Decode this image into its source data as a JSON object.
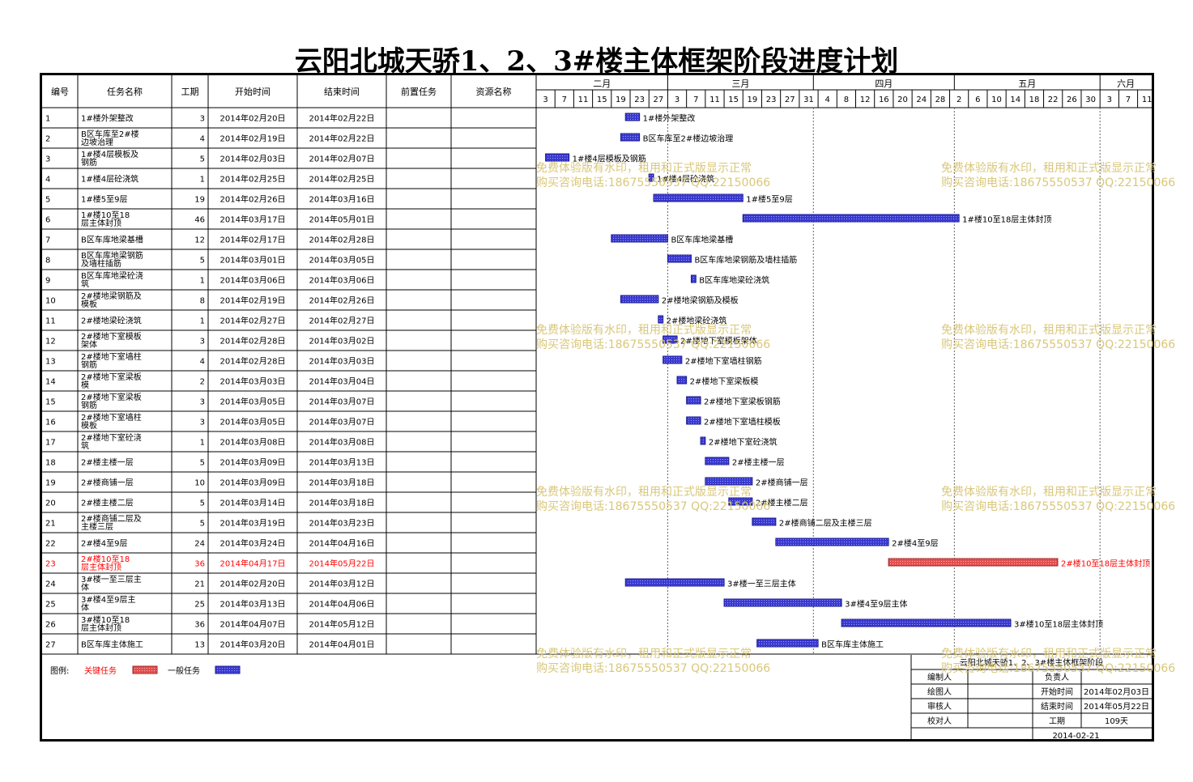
{
  "title": "云阳北城天骄1、2、3#楼主体框架阶段进度计划",
  "columns": [
    "编号",
    "任务名称",
    "工期",
    "开始时间",
    "结束时间",
    "前置任务",
    "资源名称"
  ],
  "months": [
    {
      "label": "二月",
      "days": [
        "3",
        "7",
        "11",
        "15",
        "19",
        "23",
        "27"
      ]
    },
    {
      "label": "三月",
      "days": [
        "3",
        "7",
        "11",
        "15",
        "19",
        "23",
        "27",
        "31"
      ]
    },
    {
      "label": "四月",
      "days": [
        "4",
        "8",
        "12",
        "16",
        "20",
        "24",
        "28"
      ]
    },
    {
      "label": "五月",
      "days": [
        "2",
        "6",
        "10",
        "14",
        "18",
        "22",
        "26",
        "30"
      ]
    },
    {
      "label": "六月",
      "days": [
        "3",
        "7",
        "11"
      ]
    }
  ],
  "timeline": {
    "start": "2014-02-01",
    "end": "2014-06-12"
  },
  "legend": {
    "label": "图例:",
    "critical": "关键任务",
    "normal": "一般任务"
  },
  "colors": {
    "critical": "#e05050",
    "normal": "#3a3ad0",
    "critical_text": "#ff0000"
  },
  "chart_data": {
    "type": "gantt",
    "tasks": [
      {
        "id": "1",
        "name": "1#楼外架整改",
        "duration": "3",
        "start_label": "2014年02月20日",
        "end_label": "2014年02月22日",
        "start": "2014-02-20",
        "end": "2014-02-22",
        "critical": false,
        "bar_label": "1#楼外架整改"
      },
      {
        "id": "2",
        "name": "B区车库至2#楼边坡治理",
        "duration": "4",
        "start_label": "2014年02月19日",
        "end_label": "2014年02月22日",
        "start": "2014-02-19",
        "end": "2014-02-22",
        "critical": false,
        "bar_label": "B区车库至2#楼边坡治理"
      },
      {
        "id": "3",
        "name": "1#楼4层模板及钢筋",
        "duration": "5",
        "start_label": "2014年02月03日",
        "end_label": "2014年02月07日",
        "start": "2014-02-03",
        "end": "2014-02-07",
        "critical": false,
        "bar_label": "1#楼4层模板及钢筋"
      },
      {
        "id": "4",
        "name": "1#楼4层砼浇筑",
        "duration": "1",
        "start_label": "2014年02月25日",
        "end_label": "2014年02月25日",
        "start": "2014-02-25",
        "end": "2014-02-25",
        "critical": false,
        "bar_label": "1#楼4层砼浇筑"
      },
      {
        "id": "5",
        "name": "1#楼5至9层",
        "duration": "19",
        "start_label": "2014年02月26日",
        "end_label": "2014年03月16日",
        "start": "2014-02-26",
        "end": "2014-03-16",
        "critical": false,
        "bar_label": "1#楼5至9层"
      },
      {
        "id": "6",
        "name": "1#楼10至18层主体封顶",
        "duration": "46",
        "start_label": "2014年03月17日",
        "end_label": "2014年05月01日",
        "start": "2014-03-17",
        "end": "2014-05-01",
        "critical": false,
        "bar_label": "1#楼10至18层主体封顶"
      },
      {
        "id": "7",
        "name": "B区车库地梁基槽",
        "duration": "12",
        "start_label": "2014年02月17日",
        "end_label": "2014年02月28日",
        "start": "2014-02-17",
        "end": "2014-02-28",
        "critical": false,
        "bar_label": "B区车库地梁基槽"
      },
      {
        "id": "8",
        "name": "B区车库地梁钢筋及墙柱插筋",
        "duration": "5",
        "start_label": "2014年03月01日",
        "end_label": "2014年03月05日",
        "start": "2014-03-01",
        "end": "2014-03-05",
        "critical": false,
        "bar_label": "B区车库地梁钢筋及墙柱插筋"
      },
      {
        "id": "9",
        "name": "B区车库地梁砼浇筑",
        "duration": "1",
        "start_label": "2014年03月06日",
        "end_label": "2014年03月06日",
        "start": "2014-03-06",
        "end": "2014-03-06",
        "critical": false,
        "bar_label": "B区车库地梁砼浇筑"
      },
      {
        "id": "10",
        "name": "2#楼地梁钢筋及模板",
        "duration": "8",
        "start_label": "2014年02月19日",
        "end_label": "2014年02月26日",
        "start": "2014-02-19",
        "end": "2014-02-26",
        "critical": false,
        "bar_label": "2#楼地梁钢筋及模板"
      },
      {
        "id": "11",
        "name": "2#楼地梁砼浇筑",
        "duration": "1",
        "start_label": "2014年02月27日",
        "end_label": "2014年02月27日",
        "start": "2014-02-27",
        "end": "2014-02-27",
        "critical": false,
        "bar_label": "2#楼地梁砼浇筑"
      },
      {
        "id": "12",
        "name": "2#楼地下室模板架体",
        "duration": "3",
        "start_label": "2014年02月28日",
        "end_label": "2014年03月02日",
        "start": "2014-02-28",
        "end": "2014-03-02",
        "critical": false,
        "bar_label": "2#楼地下室模板架体"
      },
      {
        "id": "13",
        "name": "2#楼地下室墙柱钢筋",
        "duration": "4",
        "start_label": "2014年02月28日",
        "end_label": "2014年03月03日",
        "start": "2014-02-28",
        "end": "2014-03-03",
        "critical": false,
        "bar_label": "2#楼地下室墙柱钢筋"
      },
      {
        "id": "14",
        "name": "2#楼地下室梁板模",
        "duration": "2",
        "start_label": "2014年03月03日",
        "end_label": "2014年03月04日",
        "start": "2014-03-03",
        "end": "2014-03-04",
        "critical": false,
        "bar_label": "2#楼地下室梁板模"
      },
      {
        "id": "15",
        "name": "2#楼地下室梁板钢筋",
        "duration": "3",
        "start_label": "2014年03月05日",
        "end_label": "2014年03月07日",
        "start": "2014-03-05",
        "end": "2014-03-07",
        "critical": false,
        "bar_label": "2#楼地下室梁板钢筋"
      },
      {
        "id": "16",
        "name": "2#楼地下室墙柱模板",
        "duration": "3",
        "start_label": "2014年03月05日",
        "end_label": "2014年03月07日",
        "start": "2014-03-05",
        "end": "2014-03-07",
        "critical": false,
        "bar_label": "2#楼地下室墙柱模板"
      },
      {
        "id": "17",
        "name": "2#楼地下室砼浇筑",
        "duration": "1",
        "start_label": "2014年03月08日",
        "end_label": "2014年03月08日",
        "start": "2014-03-08",
        "end": "2014-03-08",
        "critical": false,
        "bar_label": "2#楼地下室砼浇筑"
      },
      {
        "id": "18",
        "name": "2#楼主楼一层",
        "duration": "5",
        "start_label": "2014年03月09日",
        "end_label": "2014年03月13日",
        "start": "2014-03-09",
        "end": "2014-03-13",
        "critical": false,
        "bar_label": "2#楼主楼一层"
      },
      {
        "id": "19",
        "name": "2#楼商铺一层",
        "duration": "10",
        "start_label": "2014年03月09日",
        "end_label": "2014年03月18日",
        "start": "2014-03-09",
        "end": "2014-03-18",
        "critical": false,
        "bar_label": "2#楼商铺一层"
      },
      {
        "id": "20",
        "name": "2#楼主楼二层",
        "duration": "5",
        "start_label": "2014年03月14日",
        "end_label": "2014年03月18日",
        "start": "2014-03-14",
        "end": "2014-03-18",
        "critical": false,
        "bar_label": "2#楼主楼二层"
      },
      {
        "id": "21",
        "name": "2#楼商铺二层及主楼三层",
        "duration": "5",
        "start_label": "2014年03月19日",
        "end_label": "2014年03月23日",
        "start": "2014-03-19",
        "end": "2014-03-23",
        "critical": false,
        "bar_label": "2#楼商铺二层及主楼三层"
      },
      {
        "id": "22",
        "name": "2#楼4至9层",
        "duration": "24",
        "start_label": "2014年03月24日",
        "end_label": "2014年04月16日",
        "start": "2014-03-24",
        "end": "2014-04-16",
        "critical": false,
        "bar_label": "2#楼4至9层"
      },
      {
        "id": "23",
        "name": "2#楼10至18层主体封顶",
        "duration": "36",
        "start_label": "2014年04月17日",
        "end_label": "2014年05月22日",
        "start": "2014-04-17",
        "end": "2014-05-22",
        "critical": true,
        "bar_label": "2#楼10至18层主体封顶"
      },
      {
        "id": "24",
        "name": "3#楼一至三层主体",
        "duration": "21",
        "start_label": "2014年02月20日",
        "end_label": "2014年03月12日",
        "start": "2014-02-20",
        "end": "2014-03-12",
        "critical": false,
        "bar_label": "3#楼一至三层主体"
      },
      {
        "id": "25",
        "name": "3#楼4至9层主体",
        "duration": "25",
        "start_label": "2014年03月13日",
        "end_label": "2014年04月06日",
        "start": "2014-03-13",
        "end": "2014-04-06",
        "critical": false,
        "bar_label": "3#楼4至9层主体"
      },
      {
        "id": "26",
        "name": "3#楼10至18层主体封顶",
        "duration": "36",
        "start_label": "2014年04月07日",
        "end_label": "2014年05月12日",
        "start": "2014-04-07",
        "end": "2014-05-12",
        "critical": false,
        "bar_label": "3#楼10至18层主体封顶"
      },
      {
        "id": "27",
        "name": "B区车库主体施工",
        "duration": "13",
        "start_label": "2014年03月20日",
        "end_label": "2014年04月01日",
        "start": "2014-03-20",
        "end": "2014-04-01",
        "critical": false,
        "bar_label": "B区车库主体施工"
      }
    ]
  },
  "info_box": {
    "title": "云阳北城天骄1、2、3#楼主体框架阶段",
    "rows": [
      {
        "left": "编制人",
        "mid": "负责人",
        "right": ""
      },
      {
        "left": "绘图人",
        "mid": "开始时间",
        "right": "2014年02月03日"
      },
      {
        "left": "审核人",
        "mid": "结束时间",
        "right": "2014年05月22日"
      },
      {
        "left": "校对人",
        "mid": "工期",
        "right": "109天"
      }
    ],
    "date": "2014-02-21"
  },
  "watermark": {
    "line1": "免费体验版有水印，租用和正式版显示正常",
    "line2": "购买咨询电话:18675550537 QQ:22150066"
  }
}
